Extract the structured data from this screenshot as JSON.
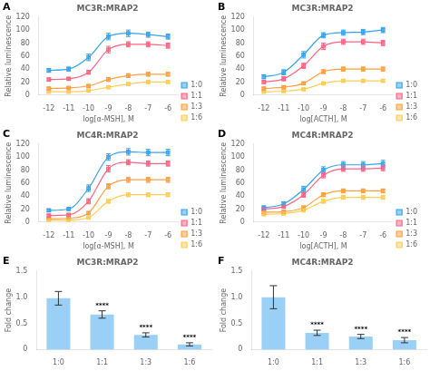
{
  "chart_data": [
    {
      "type": "line",
      "title": "MC3R:MRAP2",
      "xlabel": "log[α-MSH], M",
      "ylabel": "Relative luminescence",
      "x": [
        -12,
        -11,
        -10,
        -9,
        -8,
        -7,
        -6
      ],
      "series": [
        {
          "name": "1:0",
          "values": [
            38,
            40,
            58,
            90,
            95,
            93,
            90
          ],
          "errors": [
            3,
            3,
            5,
            5,
            5,
            4,
            4
          ]
        },
        {
          "name": "1:1",
          "values": [
            24,
            25,
            35,
            70,
            78,
            78,
            76
          ],
          "errors": [
            2,
            2,
            3,
            5,
            4,
            4,
            4
          ]
        },
        {
          "name": "1:3",
          "values": [
            10,
            11,
            14,
            24,
            30,
            32,
            32
          ],
          "errors": [
            2,
            1,
            2,
            3,
            3,
            3,
            3
          ]
        },
        {
          "name": "1:6",
          "values": [
            5,
            5,
            7,
            12,
            17,
            20,
            20
          ],
          "errors": [
            1,
            1,
            1,
            2,
            2,
            2,
            2
          ]
        }
      ],
      "xlim": [
        -12.5,
        -5.5
      ],
      "xticks": [
        -12,
        -11,
        -10,
        -9,
        -8,
        -7,
        -6
      ],
      "ylim": [
        0,
        120
      ],
      "yticks": [
        0,
        20,
        40,
        60,
        80,
        100,
        120
      ],
      "grid": false,
      "legend": "lower right",
      "marker": "square",
      "annotations": [
        {
          "text": "A"
        }
      ]
    },
    {
      "type": "line",
      "title": "MC3R:MRAP2",
      "xlabel": "log[ACTH], M",
      "ylabel": "Relative luminescence",
      "x": [
        -12,
        -11,
        -10,
        -9,
        -8,
        -7,
        -6
      ],
      "series": [
        {
          "name": "1:0",
          "values": [
            28,
            35,
            62,
            92,
            96,
            97,
            100
          ],
          "errors": [
            3,
            4,
            5,
            4,
            4,
            4,
            4
          ]
        },
        {
          "name": "1:1",
          "values": [
            20,
            25,
            45,
            75,
            82,
            82,
            80
          ],
          "errors": [
            2,
            3,
            4,
            5,
            4,
            4,
            4
          ]
        },
        {
          "name": "1:3",
          "values": [
            10,
            12,
            18,
            36,
            40,
            40,
            40
          ],
          "errors": [
            2,
            2,
            2,
            3,
            3,
            3,
            3
          ]
        },
        {
          "name": "1:6",
          "values": [
            5,
            6,
            9,
            18,
            22,
            22,
            22
          ],
          "errors": [
            1,
            1,
            1,
            2,
            2,
            2,
            2
          ]
        }
      ],
      "xlim": [
        -12.5,
        -5.5
      ],
      "xticks": [
        -12,
        -11,
        -10,
        -9,
        -8,
        -7,
        -6
      ],
      "ylim": [
        0,
        120
      ],
      "yticks": [
        0,
        20,
        40,
        60,
        80,
        100,
        120
      ],
      "grid": false,
      "legend": "lower right",
      "marker": "square",
      "annotations": [
        {
          "text": "B"
        }
      ]
    },
    {
      "type": "line",
      "title": "MC4R:MRAP2",
      "xlabel": "log[α-MSH], M",
      "ylabel": "Relative luminescence",
      "x": [
        -12,
        -11,
        -10,
        -9,
        -8,
        -7,
        -6
      ],
      "series": [
        {
          "name": "1:0",
          "values": [
            18,
            20,
            52,
            100,
            108,
            107,
            107
          ],
          "errors": [
            2,
            2,
            5,
            5,
            5,
            5,
            5
          ]
        },
        {
          "name": "1:1",
          "values": [
            10,
            11,
            32,
            82,
            92,
            90,
            90
          ],
          "errors": [
            2,
            2,
            4,
            5,
            4,
            4,
            4
          ]
        },
        {
          "name": "1:3",
          "values": [
            5,
            6,
            14,
            55,
            65,
            65,
            65
          ],
          "errors": [
            1,
            1,
            2,
            4,
            4,
            4,
            4
          ]
        },
        {
          "name": "1:6",
          "values": [
            3,
            3,
            7,
            32,
            42,
            42,
            42
          ],
          "errors": [
            1,
            1,
            1,
            3,
            3,
            3,
            3
          ]
        }
      ],
      "xlim": [
        -12.5,
        -5.5
      ],
      "xticks": [
        -12,
        -11,
        -10,
        -9,
        -8,
        -7,
        -6
      ],
      "ylim": [
        0,
        120
      ],
      "yticks": [
        0,
        20,
        40,
        60,
        80,
        100,
        120
      ],
      "grid": false,
      "legend": "lower right",
      "marker": "square",
      "annotations": [
        {
          "text": "C"
        }
      ]
    },
    {
      "type": "line",
      "title": "MC4R:MRAP2",
      "xlabel": "log[ACTH], M",
      "ylabel": "Relative luminescence",
      "x": [
        -12,
        -11,
        -10,
        -9,
        -8,
        -7,
        -6
      ],
      "series": [
        {
          "name": "1:0",
          "values": [
            22,
            28,
            50,
            80,
            88,
            88,
            90
          ],
          "errors": [
            3,
            3,
            5,
            5,
            5,
            5,
            5
          ]
        },
        {
          "name": "1:1",
          "values": [
            20,
            24,
            42,
            72,
            82,
            82,
            83
          ],
          "errors": [
            2,
            2,
            4,
            4,
            4,
            4,
            4
          ]
        },
        {
          "name": "1:3",
          "values": [
            15,
            16,
            22,
            42,
            48,
            48,
            48
          ],
          "errors": [
            2,
            2,
            3,
            3,
            3,
            3,
            3
          ]
        },
        {
          "name": "1:6",
          "values": [
            12,
            13,
            18,
            32,
            38,
            38,
            38
          ],
          "errors": [
            2,
            2,
            2,
            3,
            3,
            3,
            3
          ]
        }
      ],
      "xlim": [
        -12.5,
        -5.5
      ],
      "xticks": [
        -12,
        -11,
        -10,
        -9,
        -8,
        -7,
        -6
      ],
      "ylim": [
        0,
        120
      ],
      "yticks": [
        0,
        20,
        40,
        60,
        80,
        100,
        120
      ],
      "grid": false,
      "legend": "lower right",
      "marker": "square",
      "annotations": [
        {
          "text": "D"
        }
      ]
    },
    {
      "type": "bar",
      "title": "MC3R:MRAP2",
      "ylabel": "Fold change",
      "categories": [
        "1:0",
        "1:1",
        "1:3",
        "1:6"
      ],
      "values": [
        0.98,
        0.67,
        0.28,
        0.1
      ],
      "errors": [
        0.13,
        0.07,
        0.04,
        0.03
      ],
      "ylim": [
        0,
        1.5
      ],
      "yticks": [
        0,
        0.5,
        {
          "value": 1.0,
          "label": "1.0"
        },
        1.5
      ],
      "grid": false,
      "annotations": [
        {
          "text": "E"
        },
        {
          "text": "****",
          "x": "1:1"
        },
        {
          "text": "****",
          "x": "1:3"
        },
        {
          "text": "****",
          "x": "1:6"
        }
      ]
    },
    {
      "type": "bar",
      "title": "MC4R:MRAP2",
      "ylabel": "Fold change",
      "categories": [
        "1:0",
        "1:1",
        "1:3",
        "1:6"
      ],
      "values": [
        1.0,
        0.32,
        0.25,
        0.18
      ],
      "errors": [
        0.22,
        0.05,
        0.04,
        0.05
      ],
      "ylim": [
        0,
        1.5
      ],
      "yticks": [
        0,
        0.5,
        {
          "value": 1.0,
          "label": "1.0"
        },
        1.5
      ],
      "grid": false,
      "annotations": [
        {
          "text": "F"
        },
        {
          "text": "****",
          "x": "1:1"
        },
        {
          "text": "****",
          "x": "1:3"
        },
        {
          "text": "****",
          "x": "1:6"
        }
      ]
    }
  ]
}
